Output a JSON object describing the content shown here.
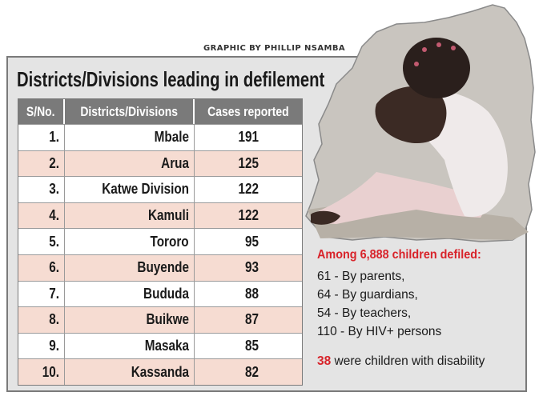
{
  "credit": "GRAPHIC BY PHILLIP NSAMBA",
  "title": "Districts/Divisions leading in defilement",
  "table": {
    "headers": [
      "S/No.",
      "Districts/Divisions",
      "Cases reported"
    ],
    "rows": [
      {
        "no": "1.",
        "district": "Mbale",
        "cases": "191"
      },
      {
        "no": "2.",
        "district": "Arua",
        "cases": "125"
      },
      {
        "no": "3.",
        "district": "Katwe Division",
        "cases": "122"
      },
      {
        "no": "4.",
        "district": "Kamuli",
        "cases": "122"
      },
      {
        "no": "5.",
        "district": "Tororo",
        "cases": "95"
      },
      {
        "no": "6.",
        "district": "Buyende",
        "cases": "93"
      },
      {
        "no": "7.",
        "district": "Bududa",
        "cases": "88"
      },
      {
        "no": "8.",
        "district": "Buikwe",
        "cases": "87"
      },
      {
        "no": "9.",
        "district": "Masaka",
        "cases": "85"
      },
      {
        "no": "10.",
        "district": "Kassanda",
        "cases": "82"
      }
    ]
  },
  "info": {
    "lead": "Among 6,888 children defiled:",
    "lines": [
      "61 -  By parents,",
      "64 - By guardians,",
      "54 -  By teachers,",
      "110 - By HIV+ persons"
    ],
    "disability_count": "38",
    "disability_text": " were children with disability"
  },
  "colors": {
    "accent_red": "#d8232a",
    "header_grey": "#7a7a7a",
    "row_tint": "#f6dcd2",
    "panel_grey": "#e4e4e4"
  }
}
